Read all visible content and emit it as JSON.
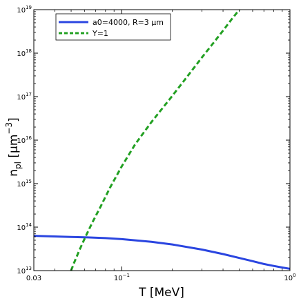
{
  "chart_data": {
    "type": "line",
    "xlabel": "T [MeV]",
    "ylabel": "n_pl [µm^-3]",
    "xscale": "log",
    "yscale": "log",
    "xlim": [
      0.03,
      1
    ],
    "ylim": [
      10000000000000.0,
      1e+19
    ],
    "grid": false,
    "legend_position": "top-left",
    "x_ticks": [
      {
        "value": 0.03,
        "label": "0.03",
        "base": "",
        "exp": ""
      },
      {
        "value": 0.1,
        "label": "",
        "base": "10",
        "exp": "−1"
      },
      {
        "value": 1,
        "label": "",
        "base": "10",
        "exp": "0"
      }
    ],
    "y_ticks": [
      {
        "value": 10000000000000.0,
        "base": "10",
        "exp": "13"
      },
      {
        "value": 100000000000000.0,
        "base": "10",
        "exp": "14"
      },
      {
        "value": 1000000000000000.0,
        "base": "10",
        "exp": "15"
      },
      {
        "value": 1e+16,
        "base": "10",
        "exp": "16"
      },
      {
        "value": 1e+17,
        "base": "10",
        "exp": "17"
      },
      {
        "value": 1e+18,
        "base": "10",
        "exp": "18"
      },
      {
        "value": 1e+19,
        "base": "10",
        "exp": "19"
      }
    ],
    "series": [
      {
        "name": "a0=4000, R=3 µm",
        "color": "#2a45e0",
        "style": "solid",
        "x": [
          0.03,
          0.04,
          0.05,
          0.06,
          0.08,
          0.1,
          0.15,
          0.2,
          0.3,
          0.4,
          0.5,
          0.6,
          0.7,
          0.8,
          0.9,
          1.0
        ],
        "y": [
          63000000000000.0,
          61000000000000.0,
          59500000000000.0,
          58500000000000.0,
          56000000000000.0,
          53000000000000.0,
          46000000000000.0,
          40000000000000.0,
          30500000000000.0,
          24000000000000.0,
          19500000000000.0,
          16500000000000.0,
          14200000000000.0,
          12800000000000.0,
          11800000000000.0,
          11000000000000.0
        ]
      },
      {
        "name": "Υ=1",
        "color": "#22a022",
        "style": "dashed",
        "x": [
          0.05,
          0.052,
          0.055,
          0.058,
          0.062,
          0.067,
          0.075,
          0.085,
          0.1,
          0.12,
          0.15,
          0.2,
          0.25,
          0.3,
          0.35,
          0.4,
          0.45,
          0.5
        ],
        "y": [
          10000000000000.0,
          15000000000000.0,
          25000000000000.0,
          40000000000000.0,
          70000000000000.0,
          130000000000000.0,
          300000000000000.0,
          800000000000000.0,
          2500000000000000.0,
          8000000000000000.0,
          2.6e+16,
          1.05e+17,
          3.2e+17,
          8e+17,
          1.7e+18,
          3.3e+18,
          6e+18,
          1e+19
        ]
      }
    ]
  }
}
